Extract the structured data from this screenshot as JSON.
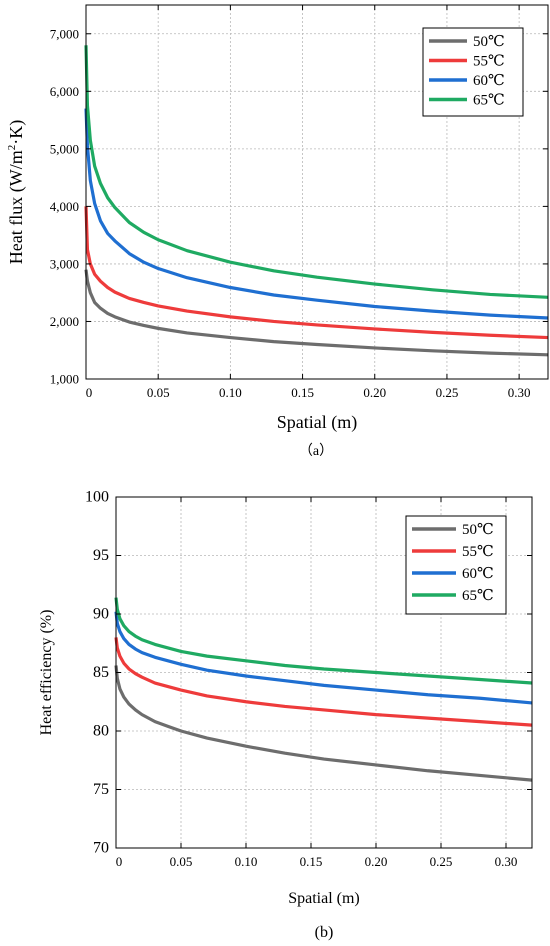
{
  "chart_data": [
    {
      "type": "line",
      "panel_label": "（a）",
      "xlabel": "Spatial (m)",
      "ylabel_main": "Heat flux (W/m",
      "ylabel_sup": "2",
      "ylabel_tail": "·K)",
      "xlim": [
        0,
        0.32
      ],
      "ylim": [
        1000,
        7500
      ],
      "x_ticks": [
        0,
        0.05,
        0.1,
        0.15,
        0.2,
        0.25,
        0.3
      ],
      "x_tick_labels": [
        "0",
        "0.05",
        "0.10",
        "0.15",
        "0.20",
        "0.25",
        "0.30"
      ],
      "y_ticks": [
        1000,
        2000,
        3000,
        4000,
        5000,
        6000,
        7000
      ],
      "y_tick_labels": [
        "1,000",
        "2,000",
        "3,000",
        "4,000",
        "5,000",
        "6,000",
        "7,000"
      ],
      "grid": true,
      "legend_position": "top-right",
      "x": [
        0,
        0.001,
        0.003,
        0.006,
        0.01,
        0.015,
        0.02,
        0.03,
        0.04,
        0.05,
        0.07,
        0.1,
        0.13,
        0.16,
        0.2,
        0.24,
        0.28,
        0.32
      ],
      "series": [
        {
          "name": "50℃",
          "color": "#6d6d6d",
          "values": [
            2900,
            2700,
            2500,
            2330,
            2230,
            2140,
            2080,
            1990,
            1930,
            1880,
            1800,
            1720,
            1650,
            1600,
            1540,
            1490,
            1450,
            1420
          ]
        },
        {
          "name": "55℃",
          "color": "#ee3b3b",
          "values": [
            4000,
            3250,
            3000,
            2820,
            2700,
            2590,
            2510,
            2400,
            2330,
            2270,
            2180,
            2080,
            2000,
            1940,
            1870,
            1810,
            1760,
            1720
          ]
        },
        {
          "name": "60℃",
          "color": "#1f6fd1",
          "values": [
            5700,
            5050,
            4450,
            4050,
            3750,
            3530,
            3400,
            3180,
            3030,
            2920,
            2760,
            2590,
            2460,
            2370,
            2260,
            2180,
            2110,
            2060
          ]
        },
        {
          "name": "65℃",
          "color": "#1faa62",
          "values": [
            6800,
            5750,
            5150,
            4700,
            4400,
            4150,
            3980,
            3720,
            3550,
            3420,
            3230,
            3030,
            2880,
            2770,
            2650,
            2550,
            2470,
            2420
          ]
        }
      ]
    },
    {
      "type": "line",
      "panel_label": "(b)",
      "xlabel": "Spatial (m)",
      "ylabel": "Heat efficiency (%)",
      "xlim": [
        0,
        0.32
      ],
      "ylim": [
        70,
        100
      ],
      "x_ticks": [
        0,
        0.05,
        0.1,
        0.15,
        0.2,
        0.25,
        0.3
      ],
      "x_tick_labels": [
        "0",
        "0.05",
        "0.10",
        "0.15",
        "0.20",
        "0.25",
        "0.30"
      ],
      "y_ticks": [
        70,
        75,
        80,
        85,
        90,
        95,
        100
      ],
      "y_tick_labels": [
        "70",
        "75",
        "80",
        "85",
        "90",
        "95",
        "100"
      ],
      "grid": true,
      "legend_position": "top-right",
      "x": [
        0,
        0.001,
        0.003,
        0.006,
        0.01,
        0.015,
        0.02,
        0.03,
        0.04,
        0.05,
        0.07,
        0.1,
        0.13,
        0.16,
        0.2,
        0.24,
        0.28,
        0.32
      ],
      "series": [
        {
          "name": "50℃",
          "color": "#6d6d6d",
          "values": [
            85.6,
            84.5,
            83.6,
            82.9,
            82.3,
            81.8,
            81.4,
            80.8,
            80.4,
            80.0,
            79.4,
            78.7,
            78.1,
            77.6,
            77.1,
            76.6,
            76.2,
            75.8
          ]
        },
        {
          "name": "55℃",
          "color": "#ee3b3b",
          "values": [
            88.0,
            87.1,
            86.4,
            85.8,
            85.3,
            84.9,
            84.6,
            84.1,
            83.8,
            83.5,
            83.0,
            82.5,
            82.1,
            81.8,
            81.4,
            81.1,
            80.8,
            80.5
          ]
        },
        {
          "name": "60℃",
          "color": "#1f6fd1",
          "values": [
            90.2,
            89.2,
            88.5,
            87.9,
            87.4,
            87.0,
            86.7,
            86.3,
            86.0,
            85.7,
            85.2,
            84.7,
            84.3,
            83.9,
            83.5,
            83.1,
            82.8,
            82.4
          ]
        },
        {
          "name": "65℃",
          "color": "#1faa62",
          "values": [
            91.4,
            90.4,
            89.6,
            89.0,
            88.5,
            88.1,
            87.8,
            87.4,
            87.1,
            86.8,
            86.4,
            86.0,
            85.6,
            85.3,
            85.0,
            84.7,
            84.4,
            84.1
          ]
        }
      ]
    }
  ]
}
